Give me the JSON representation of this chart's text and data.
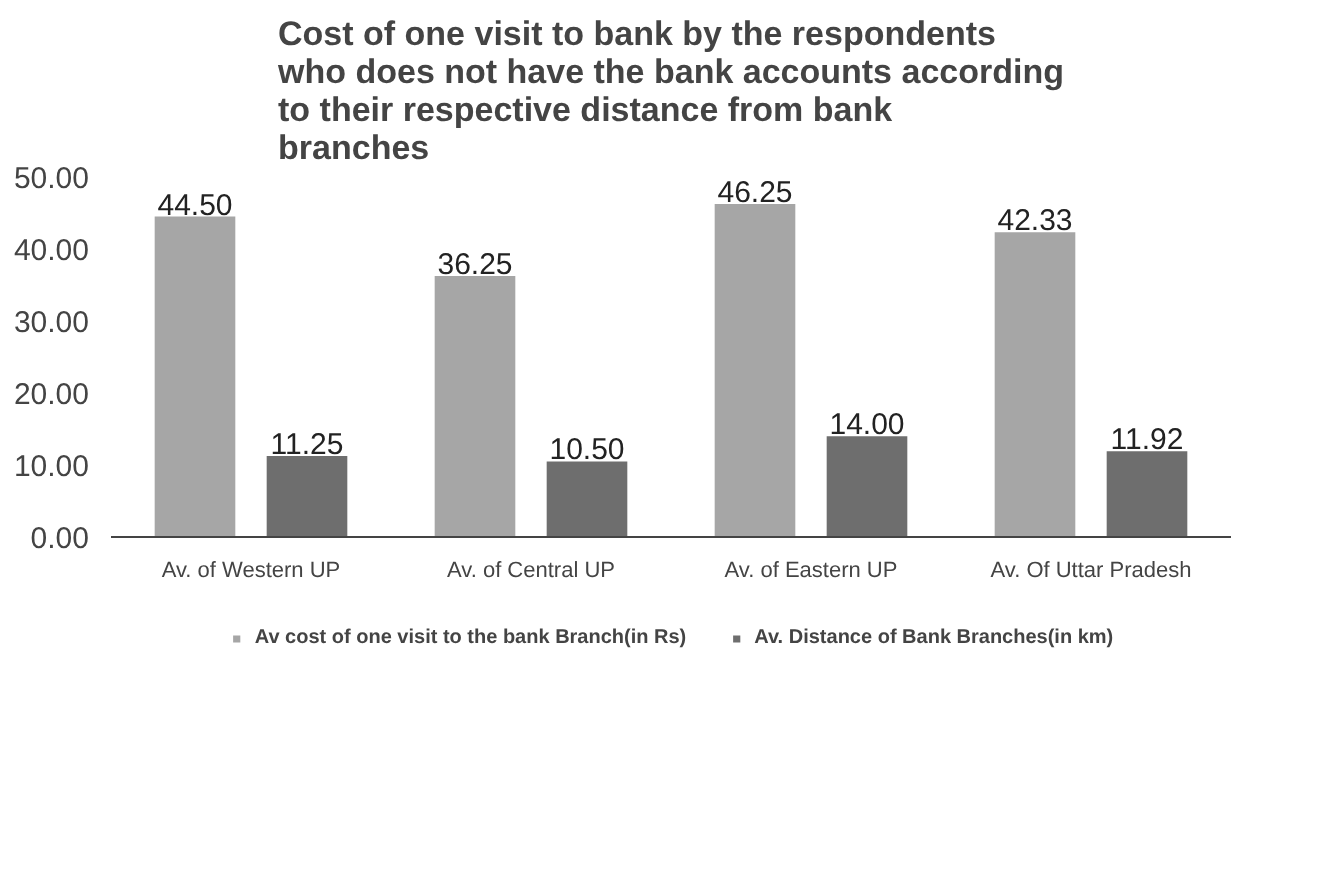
{
  "chart_data": {
    "type": "bar",
    "title": "Cost of one visit to bank by the respondents who does not have the bank accounts according to their respective distance from bank branches",
    "categories": [
      "Av. of Western UP",
      "Av. of Central UP",
      "Av. of Eastern UP",
      "Av. Of Uttar Pradesh"
    ],
    "series": [
      {
        "name": "Av cost of one visit to the bank Branch(in Rs)",
        "color": "#a6a6a6",
        "values": [
          44.5,
          36.25,
          46.25,
          42.33
        ],
        "value_labels": [
          "44.50",
          "36.25",
          "46.25",
          "42.33"
        ]
      },
      {
        "name": "Av. Distance of Bank Branches(in km)",
        "color": "#6e6e6e",
        "values": [
          11.25,
          10.5,
          14.0,
          11.92
        ],
        "value_labels": [
          "11.25",
          "10.50",
          "14.00",
          "11.92"
        ]
      }
    ],
    "ylim": [
      0,
      50
    ],
    "yticks": [
      {
        "value": 0,
        "label": "0.00"
      },
      {
        "value": 10,
        "label": "10.00"
      },
      {
        "value": 20,
        "label": "20.00"
      },
      {
        "value": 30,
        "label": "30.00"
      },
      {
        "value": 40,
        "label": "40.00"
      },
      {
        "value": 50,
        "label": "50.00"
      }
    ],
    "grid": false,
    "legend": "bottom"
  }
}
